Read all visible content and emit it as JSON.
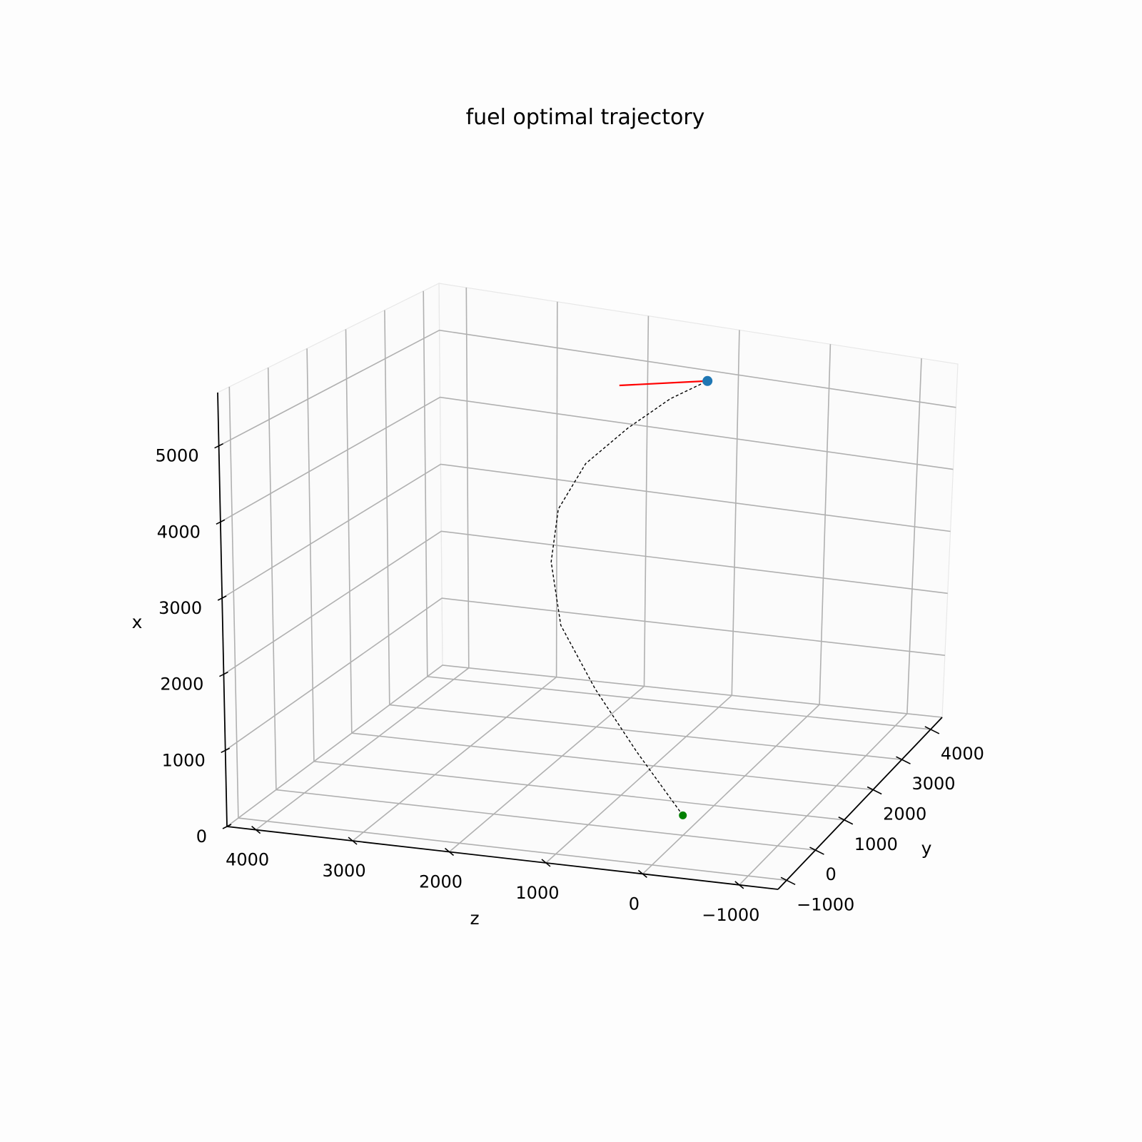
{
  "chart_data": {
    "type": "line3d",
    "title": "fuel optimal trajectory",
    "xlabel": "x",
    "ylabel": "y",
    "zlabel": "z",
    "x_ticks": [
      0,
      1000,
      2000,
      3000,
      4000,
      5000
    ],
    "x_tick_labels": [
      "0",
      "1000",
      "2000",
      "3000",
      "4000",
      "5000"
    ],
    "y_ticks": [
      -1000,
      0,
      1000,
      2000,
      3000,
      4000
    ],
    "y_tick_labels": [
      "−1000",
      "0",
      "1000",
      "2000",
      "3000",
      "4000"
    ],
    "z_ticks": [
      4000,
      3000,
      2000,
      1000,
      0,
      -1000
    ],
    "z_tick_labels": [
      "4000",
      "3000",
      "2000",
      "1000",
      "0",
      "−1000"
    ],
    "xlim": [
      0,
      5700
    ],
    "ylim": [
      -1300,
      4400
    ],
    "zlim": [
      -1400,
      4300
    ],
    "grid": true,
    "series": [
      {
        "style": "dashed",
        "color": "#000000",
        "points": [
          {
            "x": 0,
            "y": 600,
            "z": 200
          },
          {
            "x": 500,
            "y": 1200,
            "z": 900
          },
          {
            "x": 1000,
            "y": 1900,
            "z": 1600
          },
          {
            "x": 1600,
            "y": 2500,
            "z": 2200
          },
          {
            "x": 2300,
            "y": 3000,
            "z": 2500
          },
          {
            "x": 3000,
            "y": 3200,
            "z": 2500
          },
          {
            "x": 3700,
            "y": 3200,
            "z": 2200
          },
          {
            "x": 4300,
            "y": 3100,
            "z": 1700
          },
          {
            "x": 4800,
            "y": 3000,
            "z": 1200
          },
          {
            "x": 5100,
            "y": 3000,
            "z": 800
          }
        ]
      }
    ],
    "start_point": {
      "x": 5100,
      "y": 3000,
      "z": 800,
      "color": "#1f77b4"
    },
    "end_point": {
      "x": 0,
      "y": 600,
      "z": 200,
      "color": "#008000"
    },
    "thrust_vector": {
      "from": {
        "x": 5100,
        "y": 3000,
        "z": 800
      },
      "to": {
        "x": 5000,
        "y": 2600,
        "z": 1600
      },
      "color": "#ff0000"
    }
  }
}
